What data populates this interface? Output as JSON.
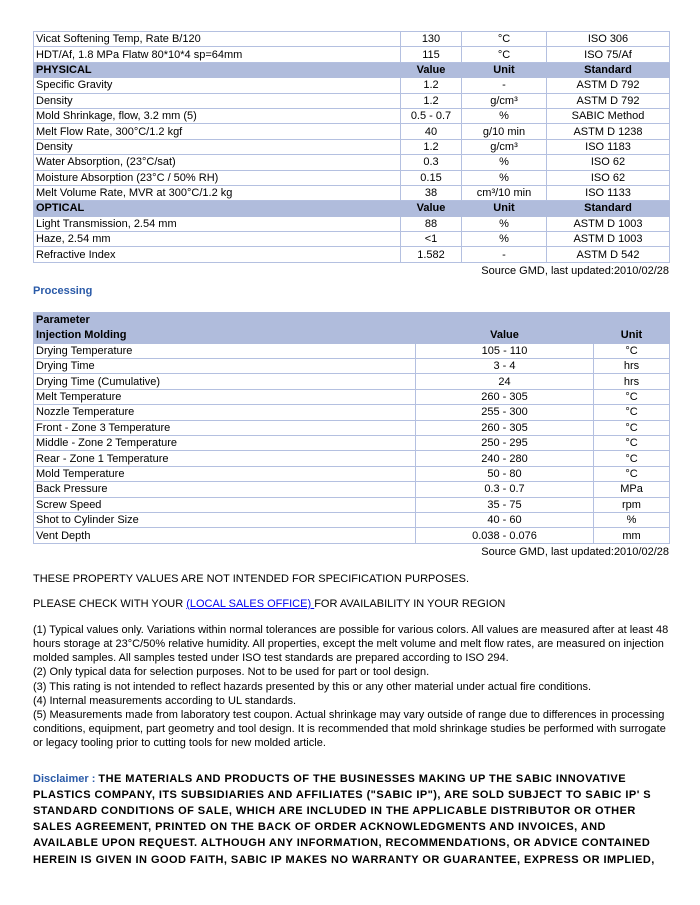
{
  "properties_table": {
    "rows": [
      {
        "type": "row",
        "cells": [
          "Vicat Softening Temp, Rate B/120",
          "130",
          "°C",
          "ISO 306"
        ]
      },
      {
        "type": "row",
        "cells": [
          "HDT/Af, 1.8 MPa Flatw 80*10*4 sp=64mm",
          "115",
          "°C",
          "ISO 75/Af"
        ]
      },
      {
        "type": "header",
        "cells": [
          "PHYSICAL",
          "Value",
          "Unit",
          "Standard"
        ]
      },
      {
        "type": "row",
        "cells": [
          "Specific Gravity",
          "1.2",
          "-",
          "ASTM D 792"
        ]
      },
      {
        "type": "row",
        "cells": [
          "Density",
          "1.2",
          "g/cm³",
          "ASTM D 792"
        ]
      },
      {
        "type": "row",
        "cells": [
          "Mold Shrinkage, flow, 3.2 mm (5)",
          "0.5 - 0.7",
          "%",
          "SABIC Method"
        ]
      },
      {
        "type": "row",
        "cells": [
          "Melt Flow Rate, 300°C/1.2 kgf",
          "40",
          "g/10 min",
          "ASTM D 1238"
        ]
      },
      {
        "type": "row",
        "cells": [
          "Density",
          "1.2",
          "g/cm³",
          "ISO 1183"
        ]
      },
      {
        "type": "row",
        "cells": [
          "Water Absorption, (23°C/sat)",
          "0.3",
          "%",
          "ISO 62"
        ]
      },
      {
        "type": "row",
        "cells": [
          "Moisture Absorption (23°C / 50% RH)",
          "0.15",
          "%",
          "ISO 62"
        ]
      },
      {
        "type": "row",
        "cells": [
          "Melt Volume Rate, MVR at 300°C/1.2 kg",
          "38",
          "cm³/10 min",
          "ISO 1133"
        ]
      },
      {
        "type": "header",
        "cells": [
          "OPTICAL",
          "Value",
          "Unit",
          "Standard"
        ]
      },
      {
        "type": "row",
        "cells": [
          "Light Transmission, 2.54 mm",
          "88",
          "%",
          "ASTM D 1003"
        ]
      },
      {
        "type": "row",
        "cells": [
          "Haze, 2.54 mm",
          "<1",
          "%",
          "ASTM D 1003"
        ]
      },
      {
        "type": "row",
        "cells": [
          "Refractive Index",
          "1.582",
          "-",
          "ASTM D 542"
        ]
      }
    ],
    "source": "Source GMD, last updated:2010/02/28"
  },
  "processing": {
    "title": "Processing",
    "header_param": "Parameter",
    "header": [
      "Injection Molding",
      "Value",
      "Unit"
    ],
    "rows": [
      [
        "Drying Temperature",
        "105 - 110",
        "°C"
      ],
      [
        "Drying Time",
        "3 - 4",
        "hrs"
      ],
      [
        "Drying Time (Cumulative)",
        "24",
        "hrs"
      ],
      [
        "Melt Temperature",
        "260 - 305",
        "°C"
      ],
      [
        "Nozzle Temperature",
        "255 - 300",
        "°C"
      ],
      [
        "Front - Zone 3 Temperature",
        "260 - 305",
        "°C"
      ],
      [
        "Middle - Zone 2 Temperature",
        "250 - 295",
        "°C"
      ],
      [
        "Rear - Zone 1 Temperature",
        "240 - 280",
        "°C"
      ],
      [
        "Mold Temperature",
        "50 - 80",
        "°C"
      ],
      [
        "Back Pressure",
        "0.3 - 0.7",
        "MPa"
      ],
      [
        "Screw Speed",
        "35 - 75",
        "rpm"
      ],
      [
        "Shot to Cylinder Size",
        "40 - 60",
        "%"
      ],
      [
        "Vent Depth",
        "0.038 - 0.076",
        "mm"
      ]
    ],
    "source": "Source GMD, last updated:2010/02/28"
  },
  "notice": "THESE PROPERTY VALUES ARE NOT INTENDED FOR SPECIFICATION PURPOSES.",
  "check": {
    "before": "PLEASE CHECK WITH YOUR ",
    "link": "(LOCAL SALES OFFICE) ",
    "after": "FOR AVAILABILITY IN YOUR REGION"
  },
  "notes": [
    "(1) Typical values only. Variations within normal tolerances are possible for various colors. All values are measured after at least 48 hours storage at 23°C/50% relative humidity. All properties, except the melt volume and melt flow rates, are measured on injection molded samples. All samples tested under ISO test standards are prepared according to ISO 294.",
    "(2) Only typical data for selection purposes. Not to be used for part or tool design.",
    "(3) This rating is not intended to reflect hazards presented by this or any other material under actual fire conditions.",
    "(4) Internal measurements according to UL standards.",
    "(5) Measurements made from laboratory test coupon. Actual shrinkage may vary outside of range due to differences in processing conditions, equipment, part geometry and tool design. It is recommended that mold shrinkage studies be performed with surrogate or legacy tooling prior to cutting tools for new molded article."
  ],
  "disclaimer": {
    "label": "Disclaimer : ",
    "text": "THE MATERIALS AND PRODUCTS OF THE BUSINESSES MAKING UP THE SABIC INNOVATIVE PLASTICS COMPANY, ITS SUBSIDIARIES AND AFFILIATES (\"SABIC IP\"), ARE SOLD SUBJECT TO SABIC IP' S STANDARD CONDITIONS OF SALE, WHICH ARE INCLUDED IN THE APPLICABLE DISTRIBUTOR OR OTHER SALES AGREEMENT, PRINTED ON THE BACK OF ORDER ACKNOWLEDGMENTS AND INVOICES, AND AVAILABLE UPON REQUEST. ALTHOUGH ANY INFORMATION, RECOMMENDATIONS, OR ADVICE CONTAINED HEREIN IS GIVEN IN GOOD FAITH, SABIC IP MAKES NO WARRANTY OR GUARANTEE, EXPRESS OR IMPLIED,"
  }
}
